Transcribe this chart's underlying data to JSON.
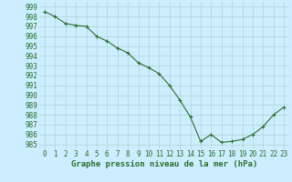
{
  "x": [
    0,
    1,
    2,
    3,
    4,
    5,
    6,
    7,
    8,
    9,
    10,
    11,
    12,
    13,
    14,
    15,
    16,
    17,
    18,
    19,
    20,
    21,
    22,
    23
  ],
  "y": [
    998.5,
    998.0,
    997.3,
    997.1,
    997.0,
    996.0,
    995.5,
    994.8,
    994.3,
    993.3,
    992.8,
    992.2,
    991.0,
    989.5,
    987.8,
    985.3,
    986.0,
    985.2,
    985.3,
    985.5,
    986.0,
    986.8,
    988.0,
    988.8
  ],
  "line_color": "#2d6e2d",
  "marker": "+",
  "marker_size": 3.5,
  "bg_color": "#cceeff",
  "grid_color": "#aacccc",
  "ylabel_values": [
    985,
    986,
    987,
    988,
    989,
    990,
    991,
    992,
    993,
    994,
    995,
    996,
    997,
    998,
    999
  ],
  "ylim": [
    984.5,
    999.5
  ],
  "xlim": [
    -0.5,
    23.5
  ],
  "xlabel": "Graphe pression niveau de la mer (hPa)",
  "xlabel_fontsize": 6.5,
  "tick_fontsize": 5.5,
  "linewidth": 0.8,
  "markeredgewidth": 0.8
}
